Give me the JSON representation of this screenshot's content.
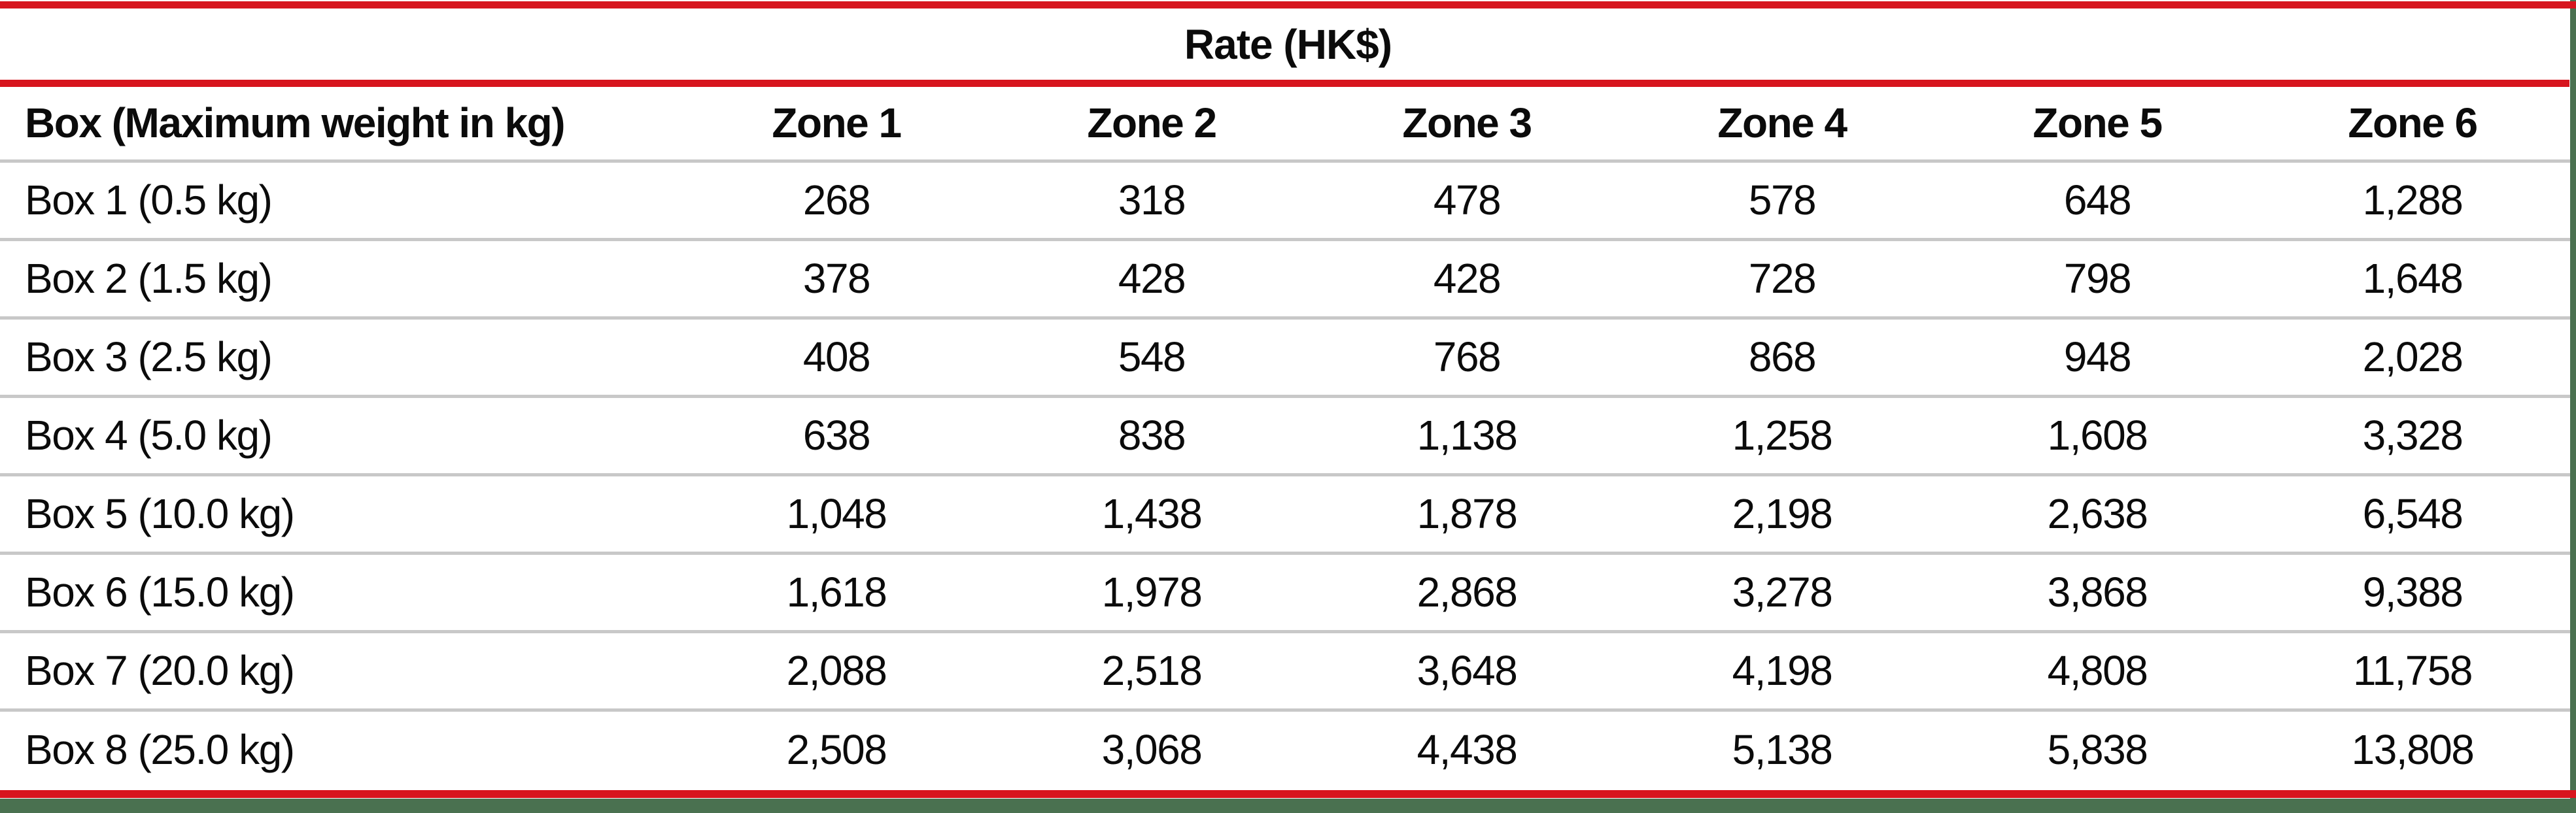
{
  "table": {
    "title": "Rate (HK$)",
    "columns": [
      "Box (Maximum weight in kg)",
      "Zone 1",
      "Zone 2",
      "Zone 3",
      "Zone 4",
      "Zone 5",
      "Zone 6"
    ],
    "rows": [
      {
        "cells": [
          "Box 1 (0.5 kg)",
          "268",
          "318",
          "478",
          "578",
          "648",
          "1,288"
        ]
      },
      {
        "cells": [
          "Box 2 (1.5 kg)",
          "378",
          "428",
          "428",
          "728",
          "798",
          "1,648"
        ]
      },
      {
        "cells": [
          "Box 3 (2.5 kg)",
          "408",
          "548",
          "768",
          "868",
          "948",
          "2,028"
        ]
      },
      {
        "cells": [
          "Box 4 (5.0 kg)",
          "638",
          "838",
          "1,138",
          "1,258",
          "1,608",
          "3,328"
        ]
      },
      {
        "cells": [
          "Box 5 (10.0 kg)",
          "1,048",
          "1,438",
          "1,878",
          "2,198",
          "2,638",
          "6,548"
        ]
      },
      {
        "cells": [
          "Box 6 (15.0 kg)",
          "1,618",
          "1,978",
          "2,868",
          "3,278",
          "3,868",
          "9,388"
        ]
      },
      {
        "cells": [
          "Box 7 (20.0 kg)",
          "2,088",
          "2,518",
          "3,648",
          "4,198",
          "4,808",
          "11,758"
        ]
      },
      {
        "cells": [
          "Box 8 (25.0 kg)",
          "2,508",
          "3,068",
          "4,438",
          "5,138",
          "5,838",
          "13,808"
        ]
      }
    ]
  },
  "colors": {
    "accent_red": "#d7151e",
    "divider_gray": "#c8c8c8",
    "page_green": "#4a7150",
    "text_black": "#0b0b0b"
  }
}
